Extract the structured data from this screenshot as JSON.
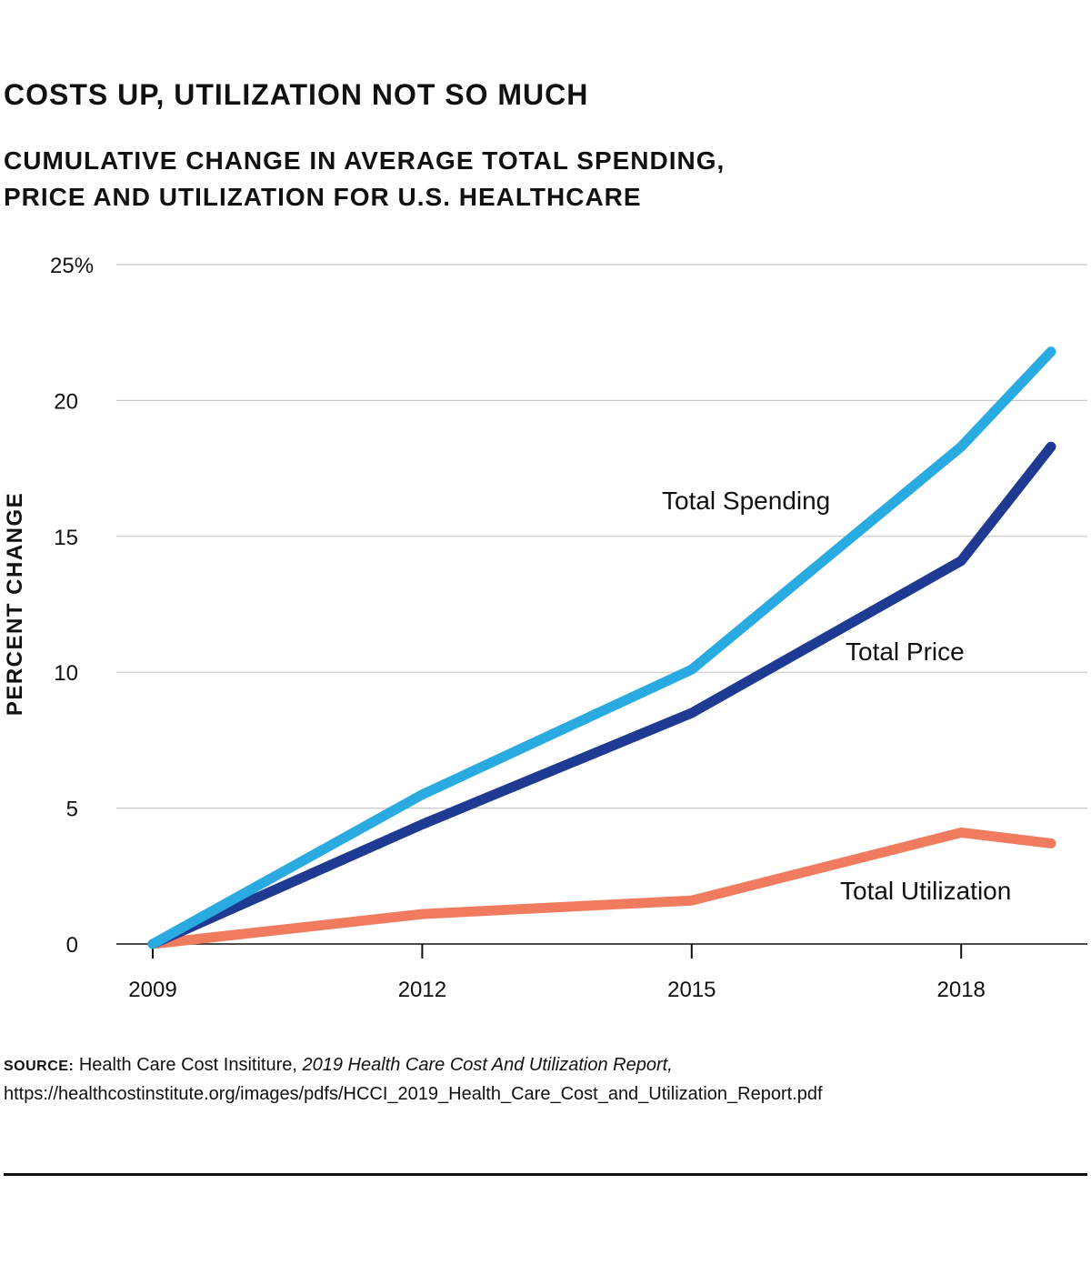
{
  "header": {
    "title": "COSTS UP, UTILIZATION NOT SO MUCH",
    "subtitle_line1": "CUMULATIVE CHANGE IN AVERAGE TOTAL SPENDING,",
    "subtitle_line2": "PRICE AND UTILIZATION FOR U.S. HEALTHCARE"
  },
  "chart_data": {
    "type": "line",
    "title": "CUMULATIVE CHANGE IN AVERAGE TOTAL SPENDING, PRICE AND UTILIZATION FOR U.S. HEALTHCARE",
    "xlabel": "",
    "ylabel": "PERCENT CHANGE",
    "x": [
      2009,
      2012,
      2015,
      2018,
      2019
    ],
    "xlim": [
      2009,
      2019
    ],
    "ylim": [
      0,
      25
    ],
    "x_ticks": [
      2009,
      2012,
      2015,
      2018
    ],
    "x_tick_labels": [
      "2009",
      "2012",
      "2015",
      "2018"
    ],
    "y_ticks": [
      0,
      5,
      10,
      15,
      20,
      25
    ],
    "y_tick_labels": [
      "0",
      "5",
      "10",
      "15",
      "20",
      "25%"
    ],
    "grid": true,
    "series": [
      {
        "name": "Total Spending",
        "color": "#29aae1",
        "values": [
          0,
          5.5,
          10.1,
          18.3,
          21.8
        ]
      },
      {
        "name": "Total Price",
        "color": "#1f3a93",
        "values": [
          0,
          4.4,
          8.5,
          14.1,
          18.3
        ]
      },
      {
        "name": "Total Utilization",
        "color": "#f07b5e",
        "values": [
          0,
          1.1,
          1.6,
          4.1,
          3.7
        ]
      }
    ]
  },
  "source": {
    "label": "SOURCE:",
    "publisher": " Health Care Cost Insititure, ",
    "report": "2019 Health Care Cost And Utilization Report,",
    "url": "https://healthcostinstitute.org/images/pdfs/HCCI_2019_Health_Care_Cost_and_Utilization_Report.pdf"
  }
}
